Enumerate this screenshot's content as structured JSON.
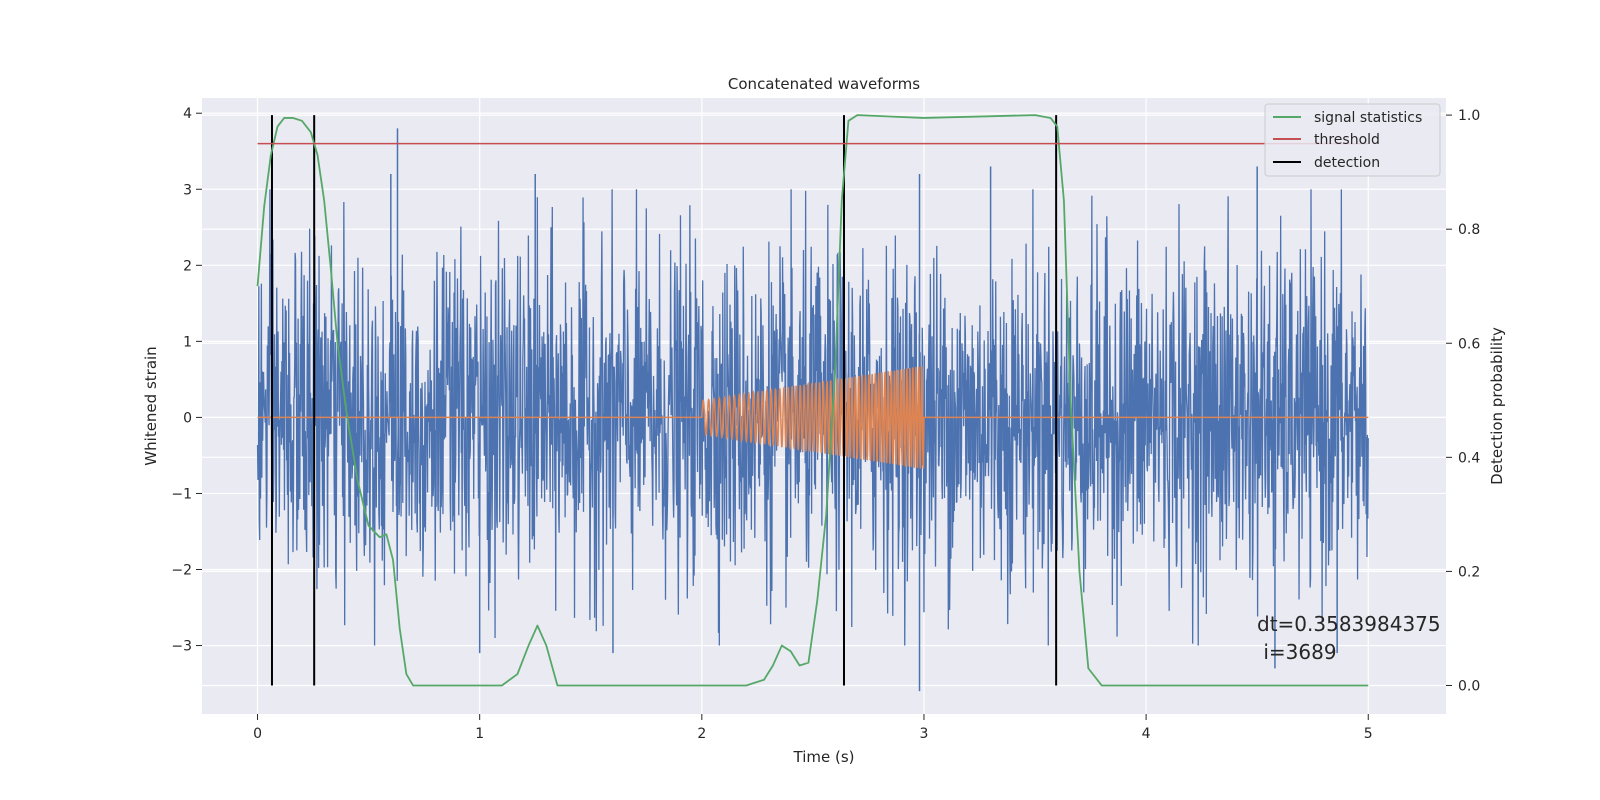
{
  "chart_data": {
    "type": "line",
    "title": "Concatenated waveforms",
    "xlabel": "Time (s)",
    "ylabel": "Whitened strain",
    "y2label": "Detection probability",
    "xlim": [
      -0.25,
      5.35
    ],
    "ylim": [
      -3.9,
      4.2
    ],
    "y2lim": [
      -0.05,
      1.03
    ],
    "xticks": [
      "0",
      "1",
      "2",
      "3",
      "4",
      "5"
    ],
    "yticks": [
      "4",
      "3",
      "2",
      "1",
      "0",
      "−1",
      "−2",
      "−3"
    ],
    "y2ticks": [
      "1.0",
      "0.8",
      "0.6",
      "0.4",
      "0.2",
      "0.0"
    ],
    "grid": true,
    "legend_position": "top-right",
    "style": {
      "background": "#eaeaf2",
      "grid_color": "#ffffff"
    },
    "series": [
      {
        "name": "",
        "kind": "noise",
        "color": "#4c72b0",
        "x_range": [
          0,
          5
        ],
        "typical_amplitude": 1.3,
        "peak_spikes": [
          [
            0.63,
            3.8
          ],
          [
            4.5,
            3.3
          ],
          [
            1.25,
            3.2
          ],
          [
            2.98,
            3.2
          ],
          [
            3.3,
            3.3
          ],
          [
            0.6,
            3.2
          ],
          [
            1.0,
            -3.1
          ],
          [
            2.98,
            -3.6
          ],
          [
            4.86,
            -3.1
          ],
          [
            4.58,
            -3.3
          ],
          [
            1.6,
            -3.1
          ]
        ]
      },
      {
        "name": "",
        "kind": "chirp",
        "color": "#dd8452",
        "x_range": [
          0,
          5
        ],
        "chirp_start": 2.0,
        "chirp_end": 3.0,
        "amplitude_start": 0.22,
        "amplitude_end": 0.68
      },
      {
        "name": "signal statistics",
        "axis": "right",
        "color": "#55a868",
        "x": [
          0,
          0.03,
          0.06,
          0.09,
          0.12,
          0.16,
          0.2,
          0.24,
          0.27,
          0.3,
          0.33,
          0.36,
          0.4,
          0.45,
          0.5,
          0.55,
          0.58,
          0.61,
          0.64,
          0.67,
          0.7,
          0.75,
          1.1,
          1.17,
          1.22,
          1.26,
          1.3,
          1.35,
          1.4,
          2.2,
          2.28,
          2.32,
          2.36,
          2.4,
          2.44,
          2.48,
          2.52,
          2.56,
          2.6,
          2.63,
          2.66,
          2.7,
          3.0,
          3.5,
          3.57,
          3.6,
          3.63,
          3.66,
          3.7,
          3.74,
          3.8,
          5.0
        ],
        "y": [
          0.7,
          0.84,
          0.93,
          0.98,
          0.995,
          0.995,
          0.99,
          0.97,
          0.93,
          0.85,
          0.73,
          0.6,
          0.48,
          0.36,
          0.28,
          0.26,
          0.265,
          0.22,
          0.1,
          0.02,
          0.0,
          0.0,
          0.0,
          0.02,
          0.07,
          0.105,
          0.07,
          0.0,
          0.0,
          0.0,
          0.01,
          0.035,
          0.07,
          0.06,
          0.035,
          0.04,
          0.15,
          0.3,
          0.55,
          0.85,
          0.99,
          1.0,
          0.995,
          1.0,
          0.995,
          0.98,
          0.85,
          0.5,
          0.2,
          0.03,
          0.0,
          0.0
        ]
      },
      {
        "name": "threshold",
        "axis": "right",
        "color": "#c44e52",
        "x": [
          0,
          5
        ],
        "y": [
          0.95,
          0.95
        ]
      },
      {
        "name": "detection",
        "axis": "right",
        "color": "#000000",
        "vlines": [
          0.065,
          0.255,
          2.64,
          3.595
        ],
        "y_span": [
          0.0,
          1.0
        ]
      }
    ],
    "annotation": {
      "line1": "dt=0.3583984375",
      "line2": " i=3689",
      "x": 4.5,
      "y": -2.7
    }
  }
}
